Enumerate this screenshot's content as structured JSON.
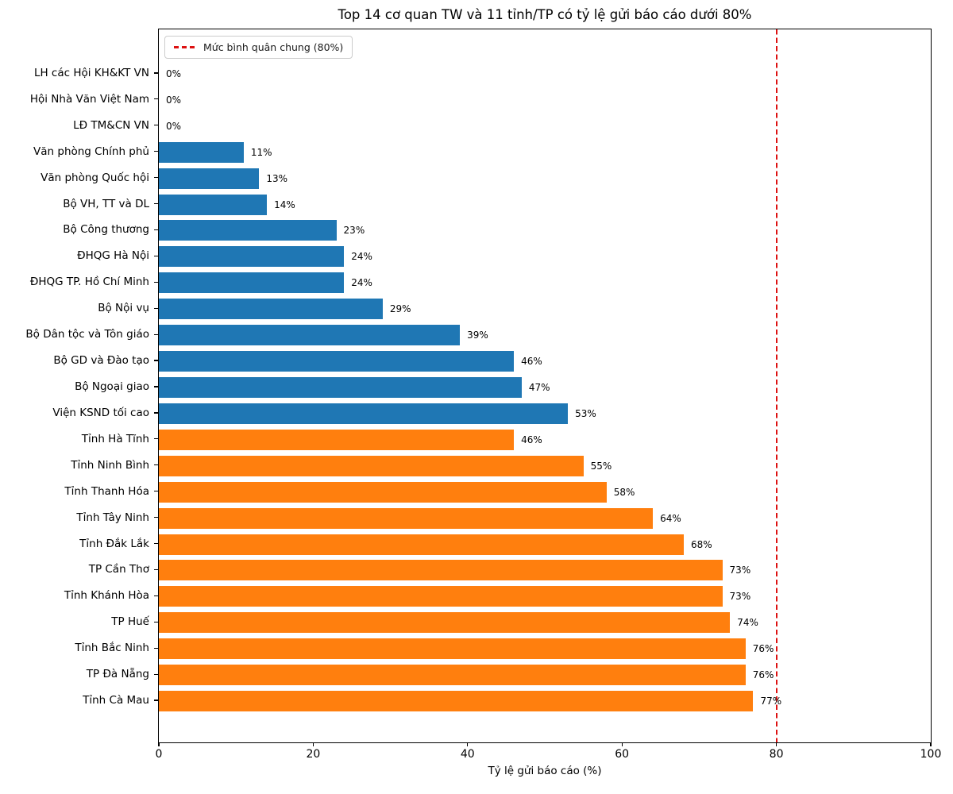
{
  "chart_data": {
    "type": "bar",
    "orientation": "horizontal",
    "title": "Top 14 cơ quan TW và 11 tỉnh/TP có tỷ lệ gửi báo cáo dưới 80%",
    "xlabel": "Tỷ lệ gửi báo cáo (%)",
    "xlim": [
      0,
      100
    ],
    "xticks": [
      "0",
      "20",
      "40",
      "60",
      "80",
      "100"
    ],
    "xtick_values": [
      0,
      20,
      40,
      60,
      80,
      100
    ],
    "grid": false,
    "legend": {
      "label": "Mức bình quân chung (80%)",
      "position": "upper left",
      "line_color": "#dd1111",
      "line_style": "dashed"
    },
    "reference_line": {
      "value": 80,
      "color": "#dd1111",
      "style": "dashed"
    },
    "colors": {
      "central_agency": "#1f77b4",
      "province": "#ff7f0e"
    },
    "items": [
      {
        "label": "LH các Hội KH&KT VN",
        "value": 0,
        "value_label": "0%",
        "group": "central_agency"
      },
      {
        "label": "Hội Nhà Văn Việt Nam",
        "value": 0,
        "value_label": "0%",
        "group": "central_agency"
      },
      {
        "label": "LĐ TM&CN VN",
        "value": 0,
        "value_label": "0%",
        "group": "central_agency"
      },
      {
        "label": "Văn phòng Chính phủ",
        "value": 11,
        "value_label": "11%",
        "group": "central_agency"
      },
      {
        "label": "Văn phòng Quốc hội",
        "value": 13,
        "value_label": "13%",
        "group": "central_agency"
      },
      {
        "label": "Bộ VH, TT và DL",
        "value": 14,
        "value_label": "14%",
        "group": "central_agency"
      },
      {
        "label": "Bộ Công thương",
        "value": 23,
        "value_label": "23%",
        "group": "central_agency"
      },
      {
        "label": "ĐHQG Hà Nội",
        "value": 24,
        "value_label": "24%",
        "group": "central_agency"
      },
      {
        "label": "ĐHQG TP. Hồ Chí Minh",
        "value": 24,
        "value_label": "24%",
        "group": "central_agency"
      },
      {
        "label": "Bộ Nội vụ",
        "value": 29,
        "value_label": "29%",
        "group": "central_agency"
      },
      {
        "label": "Bộ Dân tộc và Tôn giáo",
        "value": 39,
        "value_label": "39%",
        "group": "central_agency"
      },
      {
        "label": "Bộ GD và Đào tạo",
        "value": 46,
        "value_label": "46%",
        "group": "central_agency"
      },
      {
        "label": "Bộ Ngoại giao",
        "value": 47,
        "value_label": "47%",
        "group": "central_agency"
      },
      {
        "label": "Viện KSND tối cao",
        "value": 53,
        "value_label": "53%",
        "group": "central_agency"
      },
      {
        "label": "Tỉnh Hà Tĩnh",
        "value": 46,
        "value_label": "46%",
        "group": "province"
      },
      {
        "label": "Tỉnh Ninh Bình",
        "value": 55,
        "value_label": "55%",
        "group": "province"
      },
      {
        "label": "Tỉnh Thanh Hóa",
        "value": 58,
        "value_label": "58%",
        "group": "province"
      },
      {
        "label": "Tỉnh Tây Ninh",
        "value": 64,
        "value_label": "64%",
        "group": "province"
      },
      {
        "label": "Tỉnh Đắk Lắk",
        "value": 68,
        "value_label": "68%",
        "group": "province"
      },
      {
        "label": "TP Cần Thơ",
        "value": 73,
        "value_label": "73%",
        "group": "province"
      },
      {
        "label": "Tỉnh Khánh Hòa",
        "value": 73,
        "value_label": "73%",
        "group": "province"
      },
      {
        "label": "TP Huế",
        "value": 74,
        "value_label": "74%",
        "group": "province"
      },
      {
        "label": "Tỉnh Bắc Ninh",
        "value": 76,
        "value_label": "76%",
        "group": "province"
      },
      {
        "label": "TP Đà Nẵng",
        "value": 76,
        "value_label": "76%",
        "group": "province"
      },
      {
        "label": "Tỉnh Cà Mau",
        "value": 77,
        "value_label": "77%",
        "group": "province"
      }
    ]
  }
}
